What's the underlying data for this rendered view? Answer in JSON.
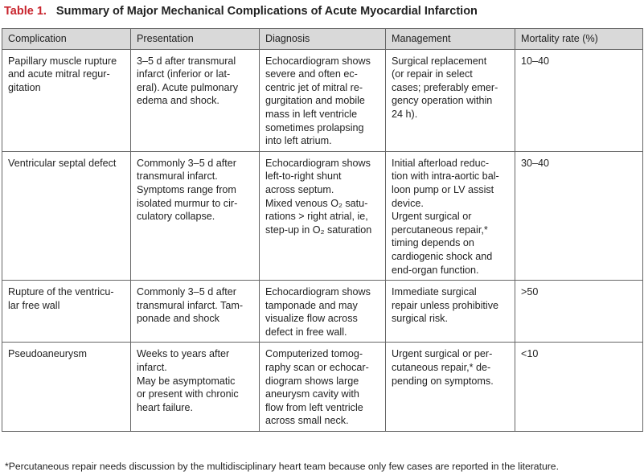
{
  "header": {
    "label": "Table 1.",
    "title": "Summary of Major Mechanical Complications of Acute Myocardial Infarction"
  },
  "table": {
    "columns": [
      "Complication",
      "Presentation",
      "Diagnosis",
      "Management",
      "Mortality rate (%)"
    ],
    "rows": [
      [
        [
          "Papillary muscle rupture",
          "and acute mitral regur-",
          "gitation"
        ],
        [
          "3–5 d after transmural",
          "infarct (inferior or lat-",
          "eral). Acute pulmonary",
          "edema and shock."
        ],
        [
          "Echocardiogram shows",
          "severe and often ec-",
          "centric jet of mitral re-",
          "gurgitation and mobile",
          "mass in left ventricle",
          "sometimes prolapsing",
          "into left atrium."
        ],
        [
          "Surgical replacement",
          "(or repair in select",
          "cases; preferably emer-",
          "gency operation within",
          "24 h)."
        ],
        [
          "10–40"
        ]
      ],
      [
        [
          "Ventricular septal defect"
        ],
        [
          "Commonly 3–5 d after",
          "transmural infarct.",
          "Symptoms range from",
          "isolated murmur to cir-",
          "culatory collapse."
        ],
        [
          "Echocardiogram shows",
          "left-to-right shunt",
          "across septum.",
          "Mixed venous O₂ satu-",
          "rations > right atrial, ie,",
          "step-up in O₂ saturation"
        ],
        [
          "Initial afterload reduc-",
          "tion with intra-aortic bal-",
          "loon pump or LV assist",
          "device.",
          "Urgent surgical or",
          "percutaneous repair,*",
          "timing depends on",
          "cardiogenic shock and",
          "end-organ function."
        ],
        [
          "30–40"
        ]
      ],
      [
        [
          "Rupture of the ventricu-",
          "lar free wall"
        ],
        [
          "Commonly 3–5 d after",
          "transmural infarct. Tam-",
          "ponade and shock"
        ],
        [
          "Echocardiogram shows",
          "tamponade and may",
          "visualize flow across",
          "defect in free wall."
        ],
        [
          "Immediate surgical",
          "repair unless prohibitive",
          "surgical risk."
        ],
        [
          ">50"
        ]
      ],
      [
        [
          "Pseudoaneurysm"
        ],
        [
          "Weeks to years after",
          "infarct.",
          "May be asymptomatic",
          "or present with chronic",
          "heart failure."
        ],
        [
          "Computerized tomog-",
          "raphy scan or echocar-",
          "diogram shows large",
          "aneurysm cavity with",
          "flow from left ventricle",
          "across small neck."
        ],
        [
          "Urgent surgical or per-",
          "cutaneous repair,* de-",
          "pending on symptoms."
        ],
        [
          "<10"
        ]
      ]
    ]
  },
  "footnote": "*Percutaneous repair needs discussion by the multidisciplinary heart team because only few cases are reported in the literature."
}
